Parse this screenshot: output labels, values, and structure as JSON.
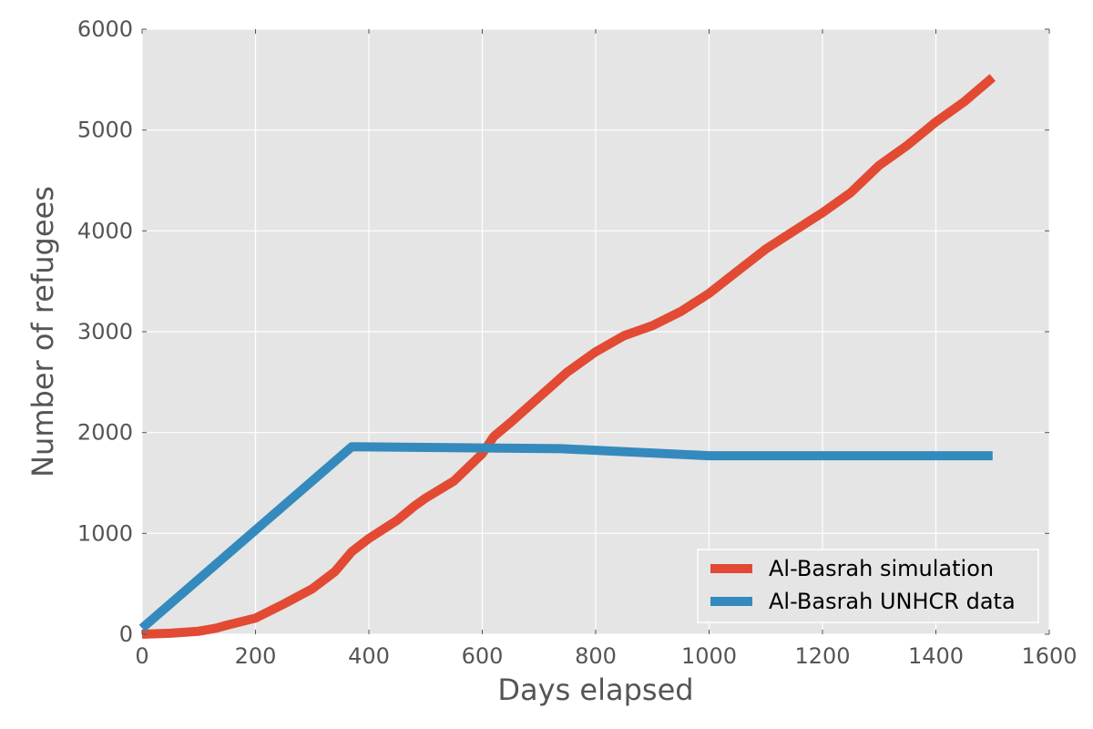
{
  "chart_data": {
    "type": "line",
    "title": "",
    "xlabel": "Days elapsed",
    "ylabel": "Number of refugees",
    "xlim": [
      0,
      1600
    ],
    "ylim": [
      0,
      6000
    ],
    "xticks": [
      0,
      200,
      400,
      600,
      800,
      1000,
      1200,
      1400,
      1600
    ],
    "yticks": [
      0,
      1000,
      2000,
      3000,
      4000,
      5000,
      6000
    ],
    "grid": true,
    "legend_position": "lower-right",
    "background_color": "#e5e5e5",
    "series": [
      {
        "name": "Al-Basrah simulation",
        "color": "#e24a33",
        "points": [
          [
            0,
            0
          ],
          [
            50,
            10
          ],
          [
            100,
            30
          ],
          [
            130,
            60
          ],
          [
            150,
            90
          ],
          [
            200,
            160
          ],
          [
            250,
            300
          ],
          [
            300,
            450
          ],
          [
            340,
            620
          ],
          [
            370,
            820
          ],
          [
            400,
            950
          ],
          [
            450,
            1130
          ],
          [
            480,
            1270
          ],
          [
            500,
            1350
          ],
          [
            550,
            1520
          ],
          [
            600,
            1790
          ],
          [
            620,
            1960
          ],
          [
            650,
            2100
          ],
          [
            700,
            2350
          ],
          [
            750,
            2600
          ],
          [
            800,
            2800
          ],
          [
            850,
            2960
          ],
          [
            880,
            3020
          ],
          [
            900,
            3060
          ],
          [
            950,
            3200
          ],
          [
            1000,
            3380
          ],
          [
            1050,
            3600
          ],
          [
            1100,
            3820
          ],
          [
            1150,
            4000
          ],
          [
            1200,
            4180
          ],
          [
            1250,
            4380
          ],
          [
            1300,
            4650
          ],
          [
            1350,
            4850
          ],
          [
            1400,
            5080
          ],
          [
            1450,
            5280
          ],
          [
            1500,
            5520
          ]
        ]
      },
      {
        "name": "Al-Basrah UNHCR data",
        "color": "#348abd",
        "points": [
          [
            0,
            60
          ],
          [
            370,
            1860
          ],
          [
            740,
            1840
          ],
          [
            1000,
            1770
          ],
          [
            1500,
            1770
          ]
        ]
      }
    ]
  }
}
